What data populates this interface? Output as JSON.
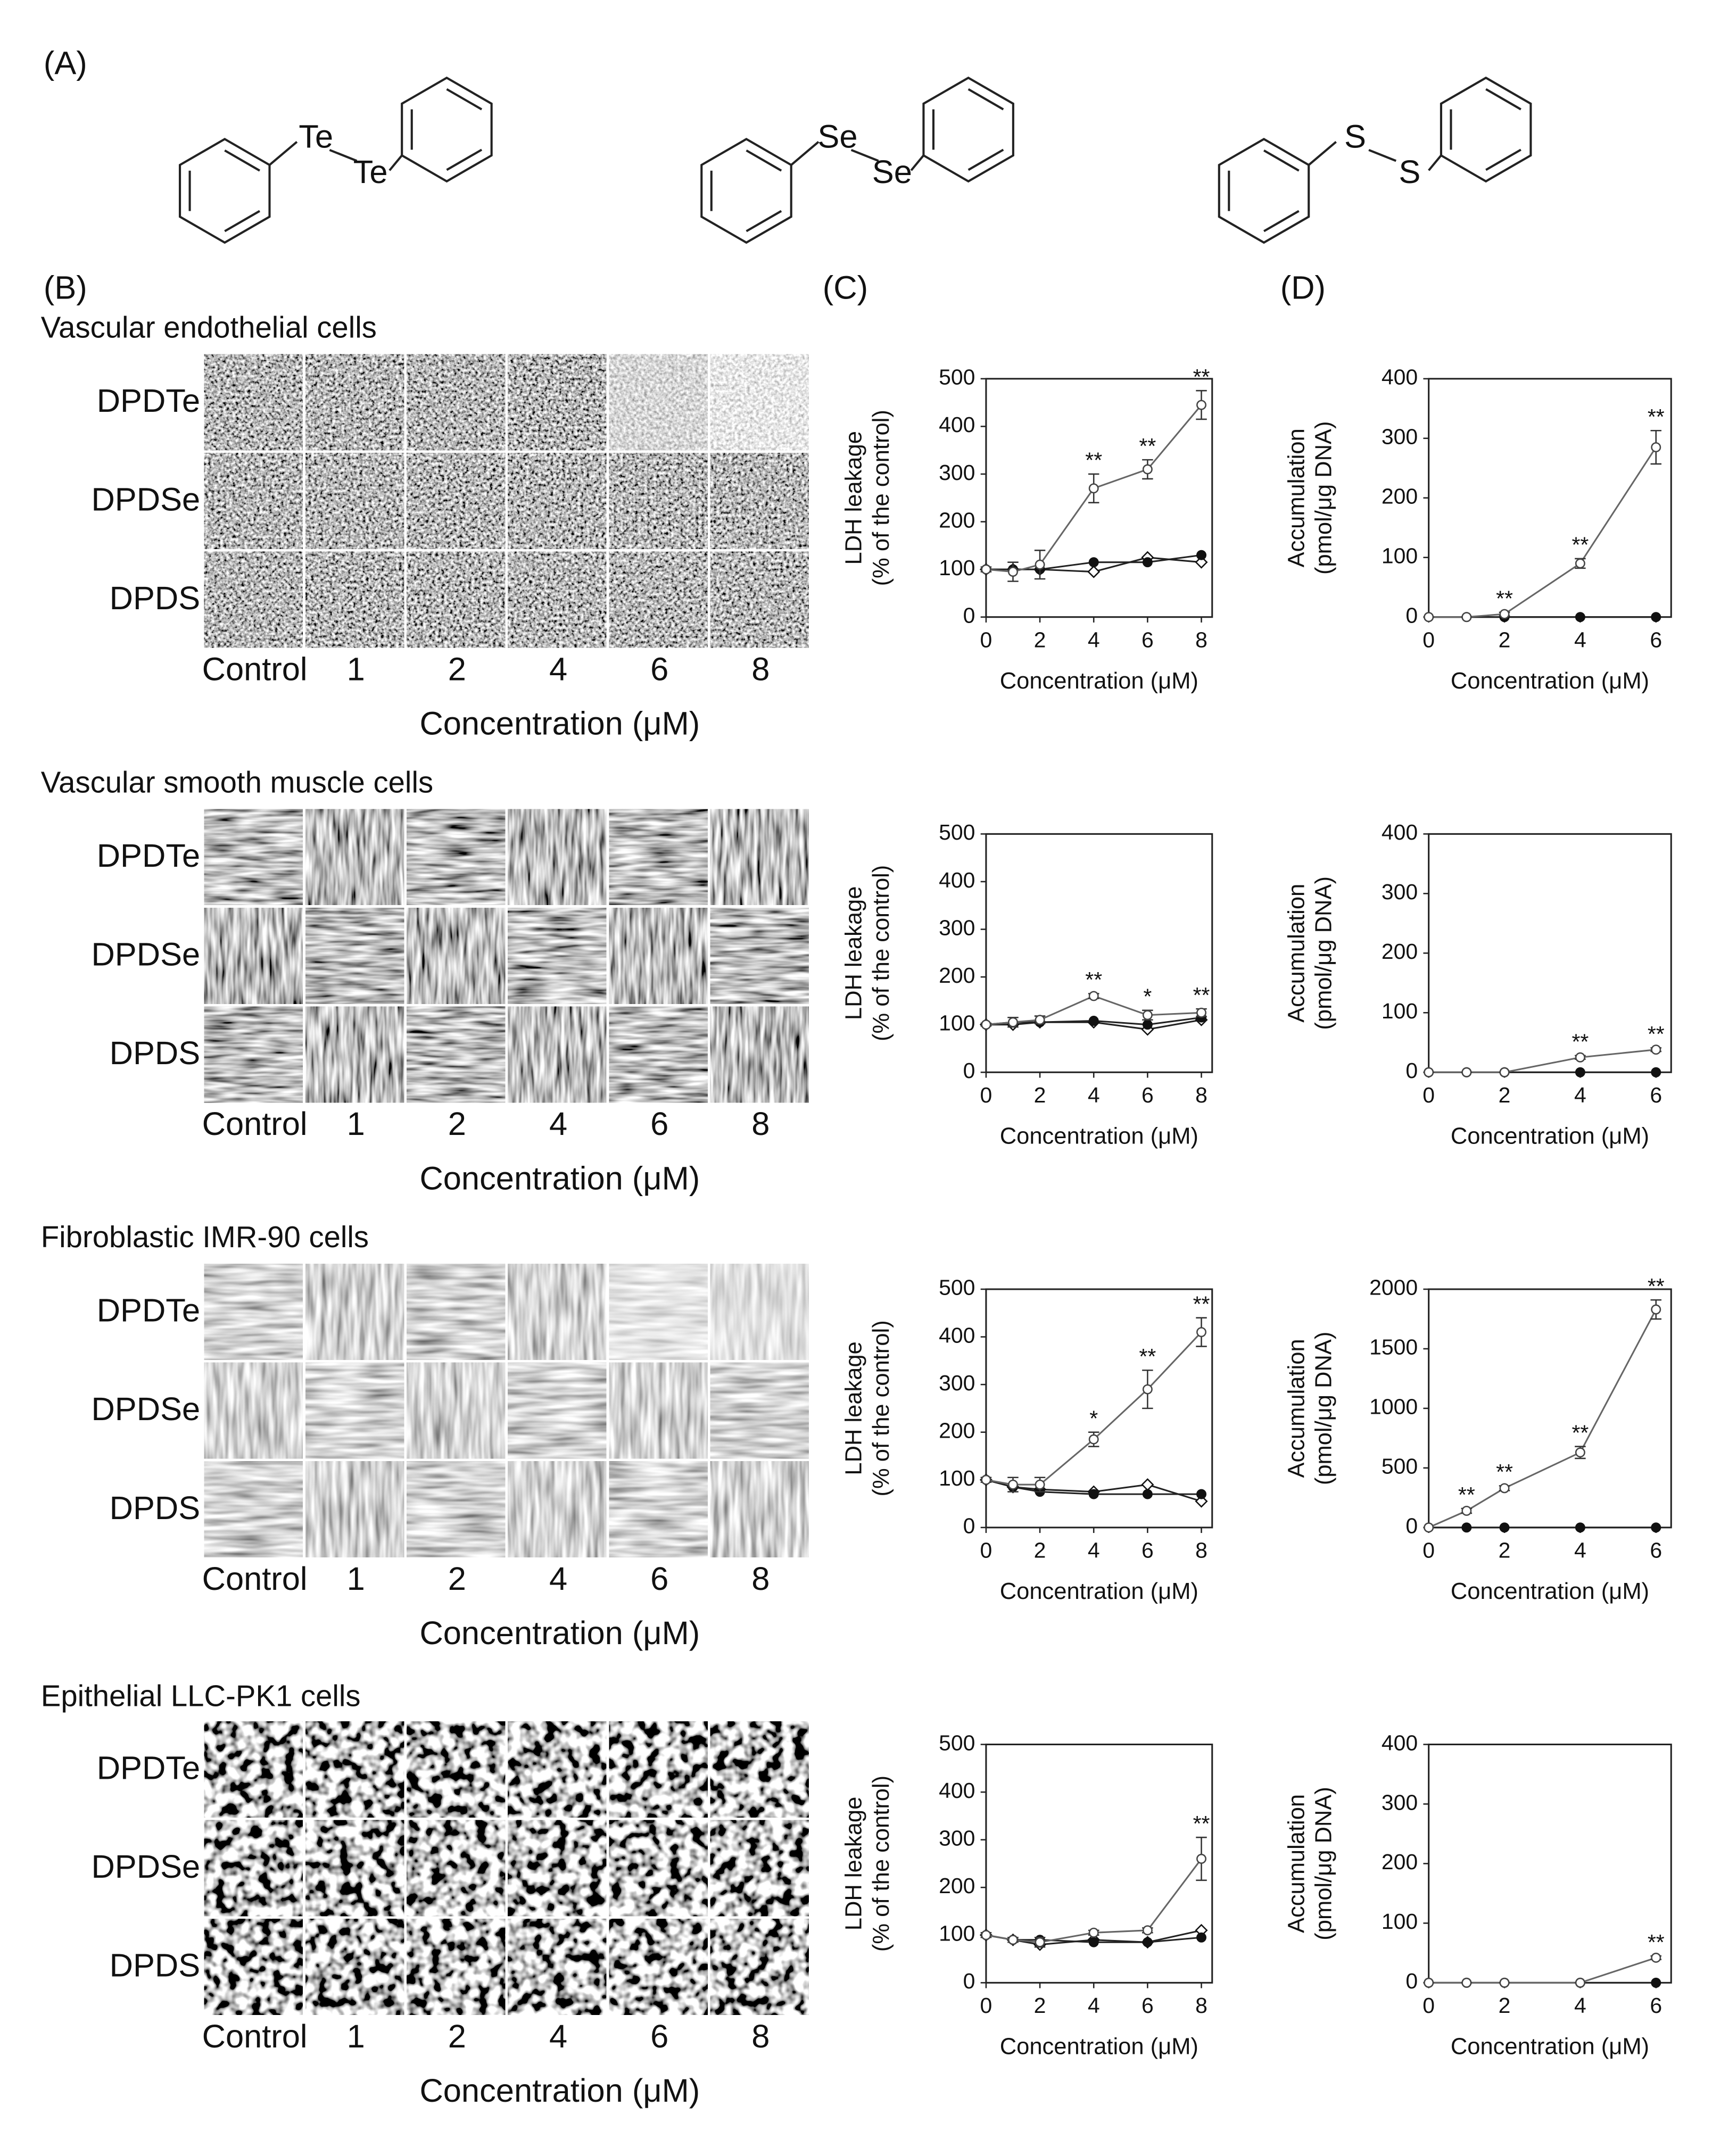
{
  "panel_labels": [
    "(A)",
    "(B)",
    "(C)",
    "(D)"
  ],
  "structures": [
    {
      "atoms": [
        "Te",
        "Te"
      ]
    },
    {
      "atoms": [
        "Se",
        "Se"
      ]
    },
    {
      "atoms": [
        "S",
        "S"
      ]
    }
  ],
  "micrographs": {
    "x_label": "Concentration (μM)",
    "columns": [
      "Control",
      "1",
      "2",
      "4",
      "6",
      "8"
    ],
    "rows": [
      "DPDTe",
      "DPDSe",
      "DPDS"
    ],
    "panels": [
      {
        "title": "Vascular endothelial cells"
      },
      {
        "title": "Vascular smooth muscle cells"
      },
      {
        "title": "Fibroblastic IMR-90 cells"
      },
      {
        "title": "Epithelial LLC-PK1 cells"
      }
    ]
  },
  "chart_data": [
    {
      "type": "line",
      "y_label": [
        "LDH leakage",
        "(% of the control)"
      ],
      "x_label": "Concentration (μM)",
      "x": [
        0,
        1,
        2,
        4,
        6,
        8
      ],
      "xlim": [
        0,
        8.4
      ],
      "xticks": [
        0,
        2,
        4,
        6,
        8
      ],
      "ylim": [
        0,
        500
      ],
      "yticks": [
        0,
        100,
        200,
        300,
        400,
        500
      ],
      "series": [
        {
          "marker": "open-circle",
          "color": "#666666",
          "values": [
            100,
            95,
            110,
            270,
            310,
            445
          ],
          "errors": [
            5,
            20,
            30,
            30,
            20,
            30
          ],
          "significance": [
            null,
            null,
            null,
            "**",
            "**",
            "**"
          ]
        },
        {
          "marker": "filled-circle",
          "color": "#222222",
          "values": [
            100,
            100,
            100,
            115,
            115,
            130
          ]
        },
        {
          "marker": "open-diamond",
          "color": "#222222",
          "values": [
            100,
            100,
            100,
            95,
            125,
            115
          ]
        }
      ]
    },
    {
      "type": "line",
      "y_label": [
        "Accumulation",
        "(pmol/μg DNA)"
      ],
      "x_label": "Concentration (μM)",
      "x": [
        0,
        1,
        2,
        4,
        6
      ],
      "xlim": [
        0,
        6.4
      ],
      "xticks": [
        0,
        2,
        4,
        6
      ],
      "ylim": [
        0,
        400
      ],
      "yticks": [
        0,
        100,
        200,
        300,
        400
      ],
      "series": [
        {
          "marker": "open-circle",
          "color": "#666666",
          "values": [
            0,
            0,
            5,
            90,
            285
          ],
          "errors": [
            0,
            0,
            3,
            8,
            28
          ],
          "significance": [
            null,
            null,
            "**",
            "**",
            "**"
          ]
        },
        {
          "marker": "filled-circle",
          "color": "#222222",
          "values": [
            0,
            0,
            0,
            0,
            0
          ]
        }
      ]
    },
    {
      "type": "line",
      "y_label": [
        "LDH leakage",
        "(% of the control)"
      ],
      "x_label": "Concentration (μM)",
      "x": [
        0,
        1,
        2,
        4,
        6,
        8
      ],
      "xlim": [
        0,
        8.4
      ],
      "xticks": [
        0,
        2,
        4,
        6,
        8
      ],
      "ylim": [
        0,
        500
      ],
      "yticks": [
        0,
        100,
        200,
        300,
        400,
        500
      ],
      "series": [
        {
          "marker": "open-circle",
          "color": "#666666",
          "values": [
            100,
            105,
            110,
            160,
            120,
            125
          ],
          "errors": [
            3,
            10,
            8,
            5,
            10,
            8
          ],
          "significance": [
            null,
            null,
            null,
            "**",
            "*",
            "**"
          ]
        },
        {
          "marker": "filled-circle",
          "color": "#222222",
          "values": [
            100,
            105,
            105,
            108,
            100,
            115
          ]
        },
        {
          "marker": "open-diamond",
          "color": "#222222",
          "values": [
            100,
            100,
            105,
            105,
            90,
            110
          ]
        }
      ]
    },
    {
      "type": "line",
      "y_label": [
        "Accumulation",
        "(pmol/μg DNA)"
      ],
      "x_label": "Concentration (μM)",
      "x": [
        0,
        1,
        2,
        4,
        6
      ],
      "xlim": [
        0,
        6.4
      ],
      "xticks": [
        0,
        2,
        4,
        6
      ],
      "ylim": [
        0,
        400
      ],
      "yticks": [
        0,
        100,
        200,
        300,
        400
      ],
      "series": [
        {
          "marker": "open-circle",
          "color": "#666666",
          "values": [
            0,
            0,
            0,
            25,
            38
          ],
          "errors": [
            0,
            0,
            0,
            3,
            3
          ],
          "significance": [
            null,
            null,
            null,
            "**",
            "**"
          ]
        },
        {
          "marker": "filled-circle",
          "color": "#222222",
          "values": [
            0,
            0,
            0,
            0,
            0
          ]
        }
      ]
    },
    {
      "type": "line",
      "y_label": [
        "LDH leakage",
        "(% of the control)"
      ],
      "x_label": "Concentration (μM)",
      "x": [
        0,
        1,
        2,
        4,
        6,
        8
      ],
      "xlim": [
        0,
        8.4
      ],
      "xticks": [
        0,
        2,
        4,
        6,
        8
      ],
      "ylim": [
        0,
        500
      ],
      "yticks": [
        0,
        100,
        200,
        300,
        400,
        500
      ],
      "series": [
        {
          "marker": "open-circle",
          "color": "#666666",
          "values": [
            100,
            90,
            90,
            185,
            290,
            410
          ],
          "errors": [
            5,
            15,
            15,
            15,
            40,
            30
          ],
          "significance": [
            null,
            null,
            null,
            "*",
            "**",
            "**"
          ]
        },
        {
          "marker": "filled-circle",
          "color": "#222222",
          "values": [
            100,
            85,
            75,
            70,
            70,
            70
          ]
        },
        {
          "marker": "open-diamond",
          "color": "#222222",
          "values": [
            100,
            85,
            80,
            75,
            90,
            55
          ]
        }
      ]
    },
    {
      "type": "line",
      "y_label": [
        "Accumulation",
        "(pmol/μg DNA)"
      ],
      "x_label": "Concentration (μM)",
      "x": [
        0,
        1,
        2,
        4,
        6
      ],
      "xlim": [
        0,
        6.4
      ],
      "xticks": [
        0,
        2,
        4,
        6
      ],
      "ylim": [
        0,
        2000
      ],
      "yticks": [
        0,
        500,
        1000,
        1500,
        2000
      ],
      "series": [
        {
          "marker": "open-circle",
          "color": "#666666",
          "values": [
            0,
            140,
            330,
            630,
            1830
          ],
          "errors": [
            0,
            20,
            20,
            50,
            80
          ],
          "significance": [
            null,
            "**",
            "**",
            "**",
            "**"
          ]
        },
        {
          "marker": "filled-circle",
          "color": "#222222",
          "values": [
            0,
            0,
            0,
            0,
            0
          ]
        }
      ]
    },
    {
      "type": "line",
      "y_label": [
        "LDH leakage",
        "(% of the control)"
      ],
      "x_label": "Concentration (μM)",
      "x": [
        0,
        1,
        2,
        4,
        6,
        8
      ],
      "xlim": [
        0,
        8.4
      ],
      "xticks": [
        0,
        2,
        4,
        6,
        8
      ],
      "ylim": [
        0,
        500
      ],
      "yticks": [
        0,
        100,
        200,
        300,
        400,
        500
      ],
      "series": [
        {
          "marker": "open-circle",
          "color": "#666666",
          "values": [
            100,
            90,
            85,
            105,
            110,
            260
          ],
          "errors": [
            5,
            5,
            10,
            5,
            5,
            45
          ],
          "significance": [
            null,
            null,
            null,
            null,
            null,
            "**"
          ]
        },
        {
          "marker": "filled-circle",
          "color": "#222222",
          "values": [
            100,
            90,
            90,
            85,
            85,
            95
          ]
        },
        {
          "marker": "open-diamond",
          "color": "#222222",
          "values": [
            100,
            90,
            80,
            90,
            85,
            110
          ]
        }
      ]
    },
    {
      "type": "line",
      "y_label": [
        "Accumulation",
        "(pmol/μg DNA)"
      ],
      "x_label": "Concentration (μM)",
      "x": [
        0,
        1,
        2,
        4,
        6
      ],
      "xlim": [
        0,
        6.4
      ],
      "xticks": [
        0,
        2,
        4,
        6
      ],
      "ylim": [
        0,
        400
      ],
      "yticks": [
        0,
        100,
        200,
        300,
        400
      ],
      "series": [
        {
          "marker": "open-circle",
          "color": "#666666",
          "values": [
            0,
            0,
            0,
            0,
            42
          ],
          "errors": [
            0,
            0,
            0,
            0,
            3
          ],
          "significance": [
            null,
            null,
            null,
            null,
            "**"
          ]
        },
        {
          "marker": "filled-circle",
          "color": "#222222",
          "values": [
            0,
            0,
            0,
            0,
            0
          ]
        }
      ]
    }
  ]
}
